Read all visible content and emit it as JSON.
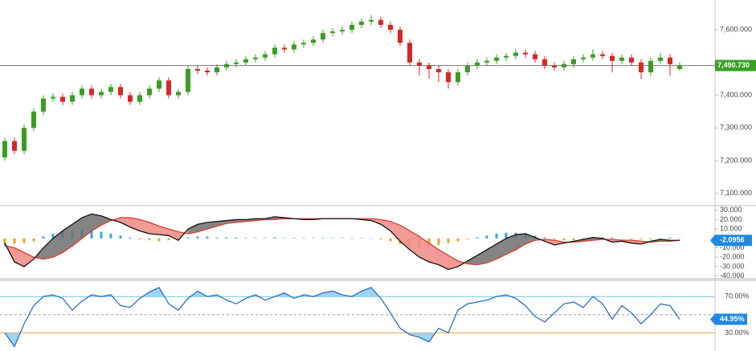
{
  "chart_data": [
    {
      "type": "candlestick",
      "ohlc": [
        [
          7210,
          7270,
          7200,
          7260
        ],
        [
          7260,
          7270,
          7220,
          7230
        ],
        [
          7230,
          7310,
          7220,
          7300
        ],
        [
          7300,
          7360,
          7290,
          7350
        ],
        [
          7350,
          7400,
          7340,
          7390
        ],
        [
          7390,
          7405,
          7380,
          7395
        ],
        [
          7395,
          7405,
          7370,
          7380
        ],
        [
          7380,
          7410,
          7370,
          7400
        ],
        [
          7400,
          7430,
          7390,
          7420
        ],
        [
          7420,
          7430,
          7390,
          7400
        ],
        [
          7400,
          7420,
          7390,
          7410
        ],
        [
          7410,
          7435,
          7400,
          7425
        ],
        [
          7425,
          7435,
          7390,
          7400
        ],
        [
          7400,
          7410,
          7370,
          7380
        ],
        [
          7380,
          7410,
          7370,
          7400
        ],
        [
          7400,
          7430,
          7390,
          7420
        ],
        [
          7420,
          7455,
          7410,
          7445
        ],
        [
          7445,
          7455,
          7390,
          7400
        ],
        [
          7400,
          7420,
          7390,
          7410
        ],
        [
          7410,
          7490,
          7400,
          7480
        ],
        [
          7480,
          7490,
          7465,
          7475
        ],
        [
          7475,
          7485,
          7460,
          7470
        ],
        [
          7470,
          7495,
          7460,
          7485
        ],
        [
          7485,
          7505,
          7475,
          7495
        ],
        [
          7495,
          7510,
          7485,
          7500
        ],
        [
          7500,
          7520,
          7490,
          7510
        ],
        [
          7510,
          7525,
          7500,
          7515
        ],
        [
          7515,
          7535,
          7505,
          7525
        ],
        [
          7525,
          7555,
          7515,
          7545
        ],
        [
          7545,
          7555,
          7530,
          7540
        ],
        [
          7540,
          7565,
          7530,
          7555
        ],
        [
          7555,
          7570,
          7545,
          7560
        ],
        [
          7560,
          7580,
          7550,
          7570
        ],
        [
          7570,
          7600,
          7560,
          7590
        ],
        [
          7590,
          7605,
          7580,
          7595
        ],
        [
          7595,
          7610,
          7585,
          7600
        ],
        [
          7600,
          7625,
          7590,
          7615
        ],
        [
          7615,
          7635,
          7605,
          7625
        ],
        [
          7625,
          7645,
          7615,
          7630
        ],
        [
          7630,
          7640,
          7605,
          7615
        ],
        [
          7615,
          7625,
          7590,
          7600
        ],
        [
          7600,
          7610,
          7550,
          7560
        ],
        [
          7560,
          7570,
          7490,
          7500
        ],
        [
          7500,
          7510,
          7460,
          7490
        ],
        [
          7490,
          7500,
          7450,
          7480
        ],
        [
          7480,
          7490,
          7440,
          7470
        ],
        [
          7470,
          7480,
          7420,
          7440
        ],
        [
          7440,
          7480,
          7430,
          7470
        ],
        [
          7470,
          7500,
          7460,
          7490
        ],
        [
          7490,
          7510,
          7480,
          7500
        ],
        [
          7500,
          7515,
          7490,
          7505
        ],
        [
          7505,
          7525,
          7495,
          7515
        ],
        [
          7515,
          7530,
          7505,
          7520
        ],
        [
          7520,
          7540,
          7510,
          7530
        ],
        [
          7530,
          7540,
          7515,
          7525
        ],
        [
          7525,
          7535,
          7500,
          7510
        ],
        [
          7510,
          7520,
          7480,
          7490
        ],
        [
          7490,
          7500,
          7475,
          7485
        ],
        [
          7485,
          7505,
          7475,
          7495
        ],
        [
          7495,
          7520,
          7485,
          7510
        ],
        [
          7510,
          7525,
          7500,
          7515
        ],
        [
          7515,
          7540,
          7505,
          7525
        ],
        [
          7525,
          7535,
          7510,
          7520
        ],
        [
          7520,
          7530,
          7470,
          7505
        ],
        [
          7505,
          7525,
          7495,
          7515
        ],
        [
          7515,
          7525,
          7490,
          7500
        ],
        [
          7500,
          7510,
          7450,
          7470
        ],
        [
          7470,
          7515,
          7460,
          7505
        ],
        [
          7505,
          7530,
          7495,
          7515
        ],
        [
          7515,
          7525,
          7460,
          7495
        ],
        [
          7480,
          7500,
          7475,
          7490.73
        ]
      ],
      "colors": {
        "up": "#3a9d23",
        "down": "#d62728"
      },
      "ylim": [
        7065,
        7691
      ],
      "yticks": [
        {
          "value": 7100,
          "label": "7,100.000"
        },
        {
          "value": 7200,
          "label": "7,200.000"
        },
        {
          "value": 7300,
          "label": "7,300.000"
        },
        {
          "value": 7400,
          "label": "7,400.000"
        },
        {
          "value": 7600,
          "label": "7,600.000"
        }
      ],
      "current": {
        "value": 7490.73,
        "label": "7,490.730"
      },
      "current_color": "#3aa024"
    },
    {
      "type": "macd",
      "macd": [
        -5,
        -25,
        -30,
        -22,
        -10,
        0,
        8,
        15,
        22,
        26,
        24,
        20,
        17,
        12,
        8,
        5,
        4,
        3,
        -2,
        10,
        15,
        17,
        18,
        19,
        20,
        20,
        21,
        21,
        23,
        22,
        21,
        20,
        20,
        21,
        21,
        21,
        21,
        20,
        19,
        15,
        8,
        -3,
        -12,
        -20,
        -25,
        -28,
        -33,
        -30,
        -24,
        -18,
        -12,
        -6,
        0,
        4,
        5,
        1,
        -3,
        -7,
        -5,
        -3,
        -1,
        1,
        0,
        -4,
        -3,
        -5,
        -6,
        -3,
        -1,
        -2,
        -2.0956
      ],
      "signal": [
        -8,
        -10,
        -15,
        -20,
        -22,
        -20,
        -15,
        -8,
        0,
        8,
        14,
        19,
        22,
        22,
        20,
        17,
        13,
        10,
        7,
        5,
        7,
        10,
        13,
        16,
        17,
        18,
        19,
        20,
        20,
        21,
        21,
        21,
        21,
        21,
        21,
        21,
        21,
        21,
        21,
        20,
        18,
        14,
        8,
        2,
        -5,
        -12,
        -18,
        -24,
        -27,
        -28,
        -26,
        -22,
        -17,
        -12,
        -6,
        -2,
        -1,
        -2,
        -4,
        -4,
        -3,
        -2,
        -1,
        -1,
        -2,
        -2,
        -3,
        -4,
        -3,
        -3,
        -2
      ],
      "histogram": [
        -8,
        -6,
        -5,
        -3,
        2,
        5,
        8,
        9,
        10,
        9,
        7,
        5,
        3,
        1,
        -1,
        -2,
        -3,
        -2,
        -1,
        1,
        2,
        2,
        1,
        1,
        1,
        0.5,
        0.5,
        0.5,
        1,
        0.5,
        0.5,
        0.5,
        0.5,
        0.5,
        0.5,
        0.5,
        0.5,
        0.5,
        0,
        -1,
        -3,
        -6,
        -9,
        -10,
        -9,
        -7,
        -5,
        -3,
        -1,
        1,
        3,
        5,
        6,
        6,
        5,
        3,
        1,
        -1,
        -2,
        -2,
        -1,
        0,
        1,
        1,
        0,
        -1,
        -1,
        -1,
        0,
        1,
        0
      ],
      "colors": {
        "macd": "#111111",
        "signal": "#e03a2f",
        "fill_up": "#6e6e6e",
        "fill_down": "#f08a84",
        "hist_up": "#35a8d8",
        "hist_down": "#e0a52a",
        "current": "#1e88e5"
      },
      "ylim": [
        -42,
        34
      ],
      "yticks": [
        {
          "value": 30,
          "label": "30.000"
        },
        {
          "value": 20,
          "label": "20.000"
        },
        {
          "value": 10,
          "label": "10.000"
        },
        {
          "value": -10,
          "label": "-10.000"
        },
        {
          "value": -20,
          "label": "-20.000"
        },
        {
          "value": -30,
          "label": "-30.000"
        },
        {
          "value": -40,
          "label": "-40.000"
        }
      ],
      "current": -2.0956
    },
    {
      "type": "rsi",
      "values": [
        30,
        15,
        40,
        60,
        70,
        72,
        68,
        55,
        65,
        72,
        70,
        72,
        60,
        58,
        68,
        75,
        80,
        62,
        55,
        68,
        76,
        70,
        72,
        66,
        62,
        68,
        72,
        66,
        70,
        74,
        68,
        72,
        70,
        74,
        76,
        72,
        70,
        76,
        80,
        68,
        52,
        35,
        28,
        25,
        20,
        35,
        30,
        55,
        62,
        64,
        66,
        70,
        72,
        68,
        60,
        48,
        42,
        52,
        62,
        64,
        58,
        70,
        62,
        45,
        60,
        52,
        40,
        50,
        62,
        60,
        44.95
      ],
      "color": "#1f66c1",
      "zone_color": "#9fd3f0",
      "ylim": [
        10,
        87
      ],
      "yticks": [
        {
          "value": 70,
          "label": "70.00%"
        },
        {
          "value": 30,
          "label": "30.00%"
        }
      ],
      "level_colors": [
        "#6cc4e6",
        "#f0a030"
      ],
      "dashed_level": 50,
      "current": {
        "value": 44.95,
        "label": "44.95%"
      },
      "current_color": "#1e88e5"
    }
  ]
}
